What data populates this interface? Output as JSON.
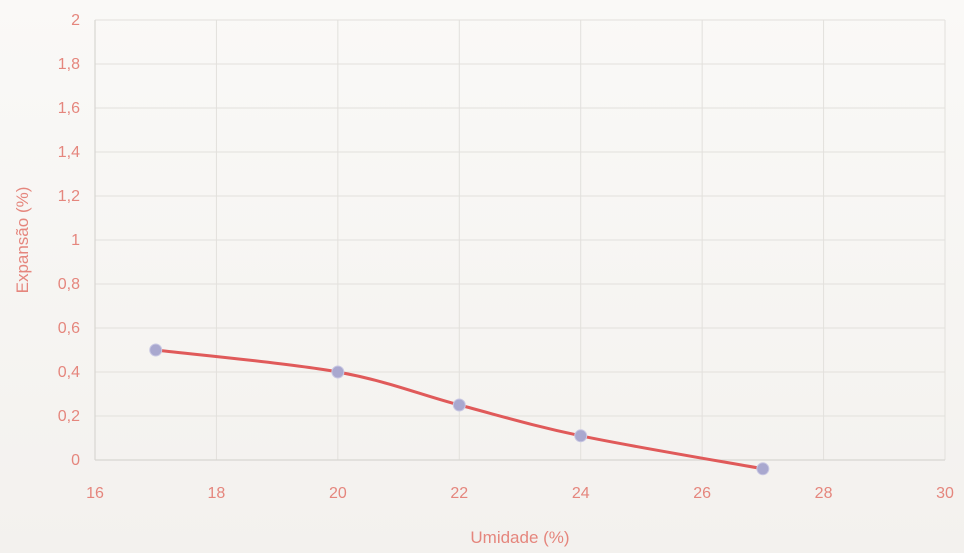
{
  "chart_data": {
    "type": "line",
    "title": "",
    "xlabel": "Umidade (%)",
    "ylabel": "Expansão (%)",
    "xlim": [
      16,
      30
    ],
    "ylim": [
      0,
      2
    ],
    "x_ticks": [
      "16",
      "18",
      "20",
      "22",
      "24",
      "26",
      "28",
      "30"
    ],
    "y_ticks": [
      "0",
      "0,2",
      "0,4",
      "0,6",
      "0,8",
      "1",
      "1,2",
      "1,4",
      "1,6",
      "1,8",
      "2"
    ],
    "grid": true,
    "smooth": true,
    "series": [
      {
        "x": [
          17,
          20,
          22,
          24,
          27
        ],
        "y": [
          0.5,
          0.4,
          0.25,
          0.11,
          -0.04
        ]
      }
    ],
    "colors": {
      "line": "#e05a5a",
      "marker": "#a9a8cf",
      "grid": "#e2e0dc",
      "text": "#e5867d",
      "axis": "#d8d6d2"
    }
  }
}
